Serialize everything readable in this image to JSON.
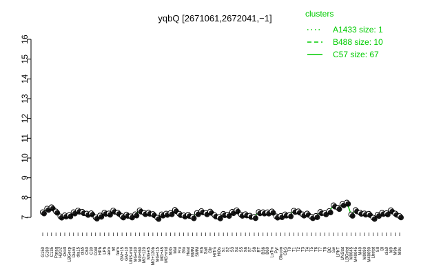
{
  "chart_data": {
    "type": "scatter",
    "title": "yqbQ [2671061,2672041,−1]",
    "xlabel": "",
    "ylabel": "",
    "ylim": [
      7,
      16
    ],
    "y_ticks": [
      7,
      8,
      9,
      10,
      11,
      12,
      13,
      14,
      15,
      16
    ],
    "grid": false,
    "legend": {
      "placement": "top-right",
      "title": "clusters",
      "entries": [
        {
          "label": "A1433 size: 1",
          "line_style": "dotted"
        },
        {
          "label": "B488 size: 10",
          "line_style": "dashed"
        },
        {
          "label": "C57 size: 67",
          "line_style": "solid"
        }
      ],
      "color": "#00cc00"
    },
    "x_tick_labels": [
      "G150",
      "G180",
      "C135",
      "Paraq",
      "H2O2",
      "Oxctl",
      "LBGexp",
      "Diami",
      "dia15",
      "dia5",
      "C60",
      "C30",
      "Cold",
      "HPh",
      "LPh",
      "aero",
      "nit",
      "ferm",
      "GM+15",
      "GM+10",
      "UNS-mid",
      "MG+t30",
      "MG+t60",
      "MG+120",
      "MG+t5",
      "MG+120b",
      "MG+t15",
      "MG+45",
      "MG+mid",
      "M/G",
      "Mal",
      "Fru",
      "Glu",
      "Heat",
      "BMM",
      "SMM",
      "Eth",
      "Salt",
      "Gly",
      "HiTm",
      "HiOs",
      "S1",
      "S2",
      "S3",
      "S4",
      "S5",
      "S6",
      "S7",
      "S8",
      "BT",
      "B36",
      "B60",
      "LoTm",
      "Pyr",
      "Glucon",
      "Gl-S",
      "T0",
      "T1",
      "T2",
      "T3",
      "T4",
      "T5",
      "T6",
      "T7",
      "T8",
      "BC",
      "Sw",
      "LPhT",
      "UNStat",
      "LBGstat",
      "M0045",
      "M40045",
      "M40",
      "M0090",
      "M40090",
      "Lbstat",
      "SII",
      "Bl",
      "dia0",
      "M9",
      "M9b",
      "M9c"
    ],
    "series": [
      {
        "name": "C57",
        "role": "cluster-line",
        "values": []
      },
      {
        "name": "",
        "role": "points",
        "values": []
      }
    ],
    "colors": {
      "points_fill": "#ffffff",
      "points_stroke": "#000000",
      "line": "#00cc00"
    }
  }
}
